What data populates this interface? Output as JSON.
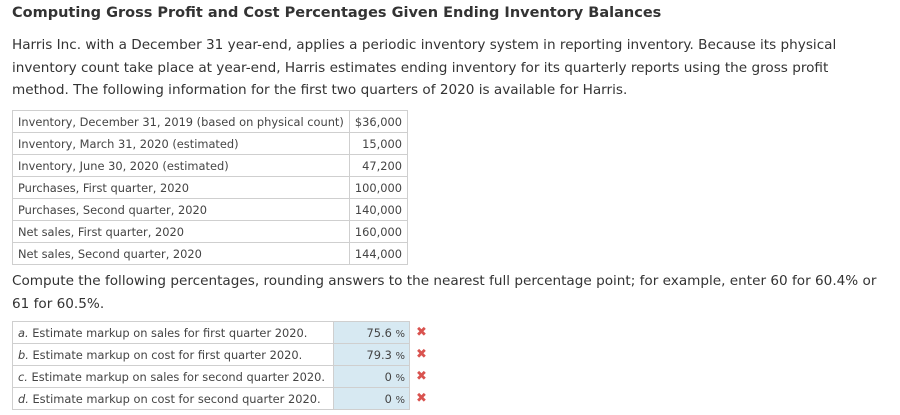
{
  "title": "Computing Gross Profit and Cost Percentages Given Ending Inventory Balances",
  "intro": [
    "Harris Inc. with a December 31 year-end, applies a periodic inventory system in reporting inventory. Because its physical",
    "inventory count take place at year-end, Harris estimates ending inventory for its quarterly reports using the gross profit",
    "method. The following information for the first two quarters of 2020 is available for Harris."
  ],
  "info_rows": [
    {
      "label": "Inventory, December 31, 2019 (based on physical count)",
      "value": "$36,000"
    },
    {
      "label": "Inventory, March 31, 2020 (estimated)",
      "value": "15,000"
    },
    {
      "label": "Inventory, June 30, 2020 (estimated)",
      "value": "47,200"
    },
    {
      "label": "Purchases, First quarter, 2020",
      "value": "100,000"
    },
    {
      "label": "Purchases, Second quarter, 2020",
      "value": "140,000"
    },
    {
      "label": "Net sales, First quarter, 2020",
      "value": "160,000"
    },
    {
      "label": "Net sales, Second quarter, 2020",
      "value": "144,000"
    }
  ],
  "instructions": [
    "Compute the following percentages, rounding answers to the nearest full percentage point; for example, enter 60 for 60.4% or",
    "61 for 60.5%."
  ],
  "questions": [
    {
      "letter": "a.",
      "text": " Estimate markup on sales for first quarter 2020.",
      "answer": "75.6",
      "unit": "%",
      "status": "incorrect"
    },
    {
      "letter": "b.",
      "text": " Estimate markup on cost for first quarter 2020.",
      "answer": "79.3",
      "unit": "%",
      "status": "incorrect"
    },
    {
      "letter": "c.",
      "text": " Estimate markup on sales for second quarter 2020.",
      "answer": "0",
      "unit": "%",
      "status": "incorrect"
    },
    {
      "letter": "d.",
      "text": " Estimate markup on cost for second quarter 2020.",
      "answer": "0",
      "unit": "%",
      "status": "incorrect"
    }
  ],
  "mark_icon": "✖",
  "colors": {
    "input_bg": "#d7e9f2",
    "incorrect": "#d9534f"
  }
}
